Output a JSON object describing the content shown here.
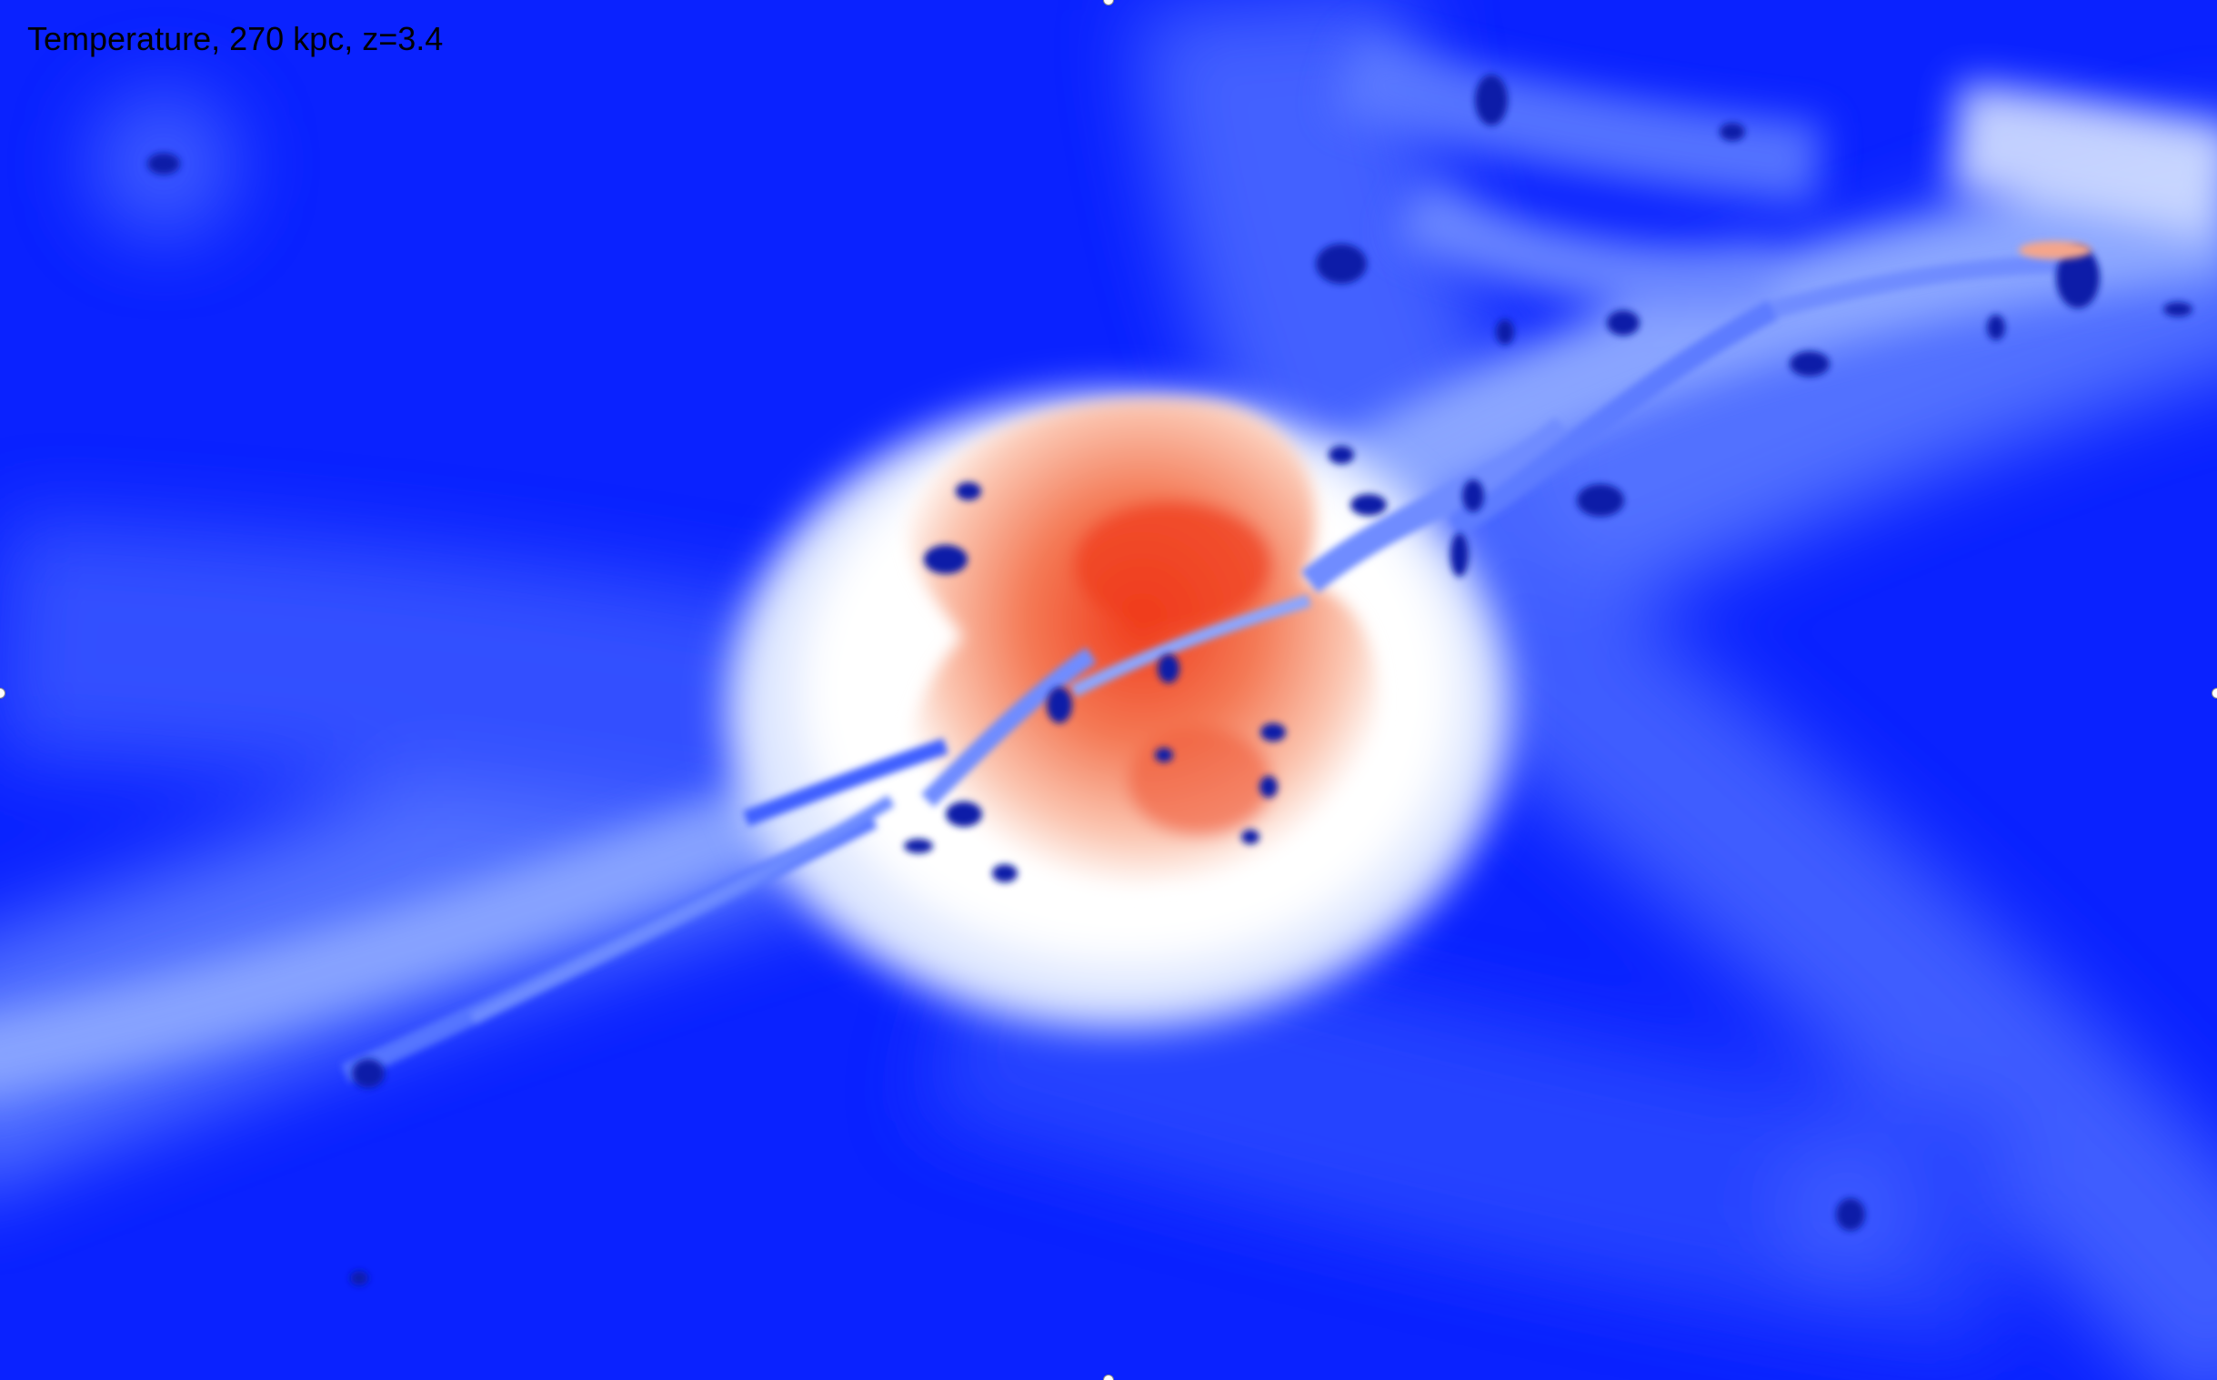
{
  "caption": "Temperature, 270 kpc, z=3.4",
  "colors": {
    "background_cold": "#0a22ff",
    "filament": "#8aa8ff",
    "shock_white": "#ffffff",
    "hot_core": "#f06a45",
    "cold_clump": "#0a1fa8"
  }
}
